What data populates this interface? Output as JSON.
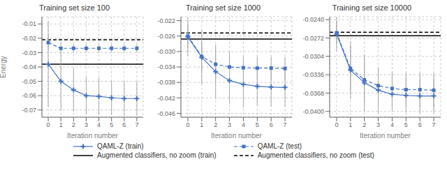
{
  "chart_data": [
    {
      "type": "line",
      "title": "Training set size 100",
      "xlabel": "Iteration number",
      "ylabel": "Energy",
      "x": [
        0,
        1,
        2,
        3,
        4,
        5,
        6,
        7
      ],
      "xlim": [
        -0.5,
        7.5
      ],
      "xticks": [
        0,
        1,
        2,
        3,
        4,
        5,
        6,
        7
      ],
      "ylim": [
        -0.075,
        -0.005
      ],
      "yticks": [
        -0.07,
        -0.06,
        -0.05,
        -0.04,
        -0.03,
        -0.02,
        -0.01
      ],
      "grid": true,
      "legend": "bottom",
      "series": [
        {
          "name": "QAML-Z (train)",
          "type": "line",
          "color": "#4472c4",
          "marker": "plus",
          "line_style": "solid",
          "values": [
            -0.038,
            -0.05,
            -0.056,
            -0.06,
            -0.0605,
            -0.0615,
            -0.062,
            -0.062
          ],
          "error": [
            0.03,
            0.02,
            0.015,
            0.013,
            0.013,
            0.012,
            0.012,
            0.012
          ]
        },
        {
          "name": "QAML-Z (test)",
          "type": "line",
          "color": "#4472c4",
          "marker": "square",
          "line_style": "dashed",
          "values": [
            -0.023,
            -0.027,
            -0.027,
            -0.027,
            -0.027,
            -0.027,
            -0.027,
            -0.027
          ],
          "error": [
            0.005,
            0.004,
            0.003,
            0.003,
            0.003,
            0.003,
            0.003,
            0.003
          ]
        },
        {
          "name": "Augmented classifiers, no zoom (train)",
          "type": "hline",
          "color": "#000000",
          "line_style": "solid",
          "y": -0.038
        },
        {
          "name": "Augmented classifiers, no zoom (test)",
          "type": "hline",
          "color": "#000000",
          "line_style": "dashed",
          "y": -0.021
        }
      ]
    },
    {
      "type": "line",
      "title": "Training set size 1000",
      "xlabel": "Iteration number",
      "x": [
        0,
        1,
        2,
        3,
        4,
        5,
        6,
        7
      ],
      "xlim": [
        -0.5,
        7.5
      ],
      "xticks": [
        0,
        1,
        2,
        3,
        4,
        5,
        6,
        7
      ],
      "ylim": [
        -0.047,
        -0.021
      ],
      "yticks": [
        -0.046,
        -0.042,
        -0.038,
        -0.034,
        {
          "value": -0.03,
          "label": "-0.030"
        },
        -0.026,
        -0.022
      ],
      "grid": true,
      "legend": "bottom",
      "series": [
        {
          "name": "QAML-Z (train)",
          "type": "line",
          "color": "#4472c4",
          "marker": "plus",
          "line_style": "solid",
          "values": [
            -0.0262,
            -0.0315,
            -0.0352,
            -0.0375,
            -0.0385,
            -0.039,
            -0.0392,
            -0.0393
          ],
          "error": [
            0.005,
            0.007,
            0.007,
            0.006,
            0.006,
            0.005,
            0.005,
            0.005
          ]
        },
        {
          "name": "QAML-Z (test)",
          "type": "line",
          "color": "#4472c4",
          "marker": "square",
          "line_style": "dashed",
          "values": [
            -0.026,
            -0.0313,
            -0.0333,
            -0.034,
            -0.0342,
            -0.0343,
            -0.0343,
            -0.0344
          ],
          "error": [
            0.003,
            0.004,
            0.004,
            0.004,
            0.003,
            0.003,
            0.003,
            0.003
          ]
        },
        {
          "name": "Augmented classifiers, no zoom (train)",
          "type": "hline",
          "color": "#000000",
          "line_style": "solid",
          "y": -0.0268
        },
        {
          "name": "Augmented classifiers, no zoom (test)",
          "type": "hline",
          "color": "#000000",
          "line_style": "dashed",
          "y": -0.0252
        }
      ]
    },
    {
      "type": "line",
      "title": "Training set size 10000",
      "xlabel": "Iteration number",
      "x": [
        0,
        1,
        2,
        3,
        4,
        5,
        6,
        7
      ],
      "xlim": [
        -0.5,
        7.5
      ],
      "xticks": [
        0,
        1,
        2,
        3,
        4,
        5,
        6,
        7
      ],
      "ylim": [
        -0.041,
        -0.0235
      ],
      "yticks": [
        {
          "value": -0.04,
          "label": "-0.0400"
        },
        -0.0368,
        -0.0336,
        -0.0304,
        -0.0272,
        {
          "value": -0.024,
          "label": "-0.0240"
        }
      ],
      "grid": true,
      "legend": "bottom",
      "series": [
        {
          "name": "QAML-Z (train)",
          "type": "line",
          "color": "#4472c4",
          "marker": "plus",
          "line_style": "solid",
          "values": [
            -0.0265,
            -0.0328,
            -0.035,
            -0.0363,
            -0.037,
            -0.0372,
            -0.0373,
            -0.0373
          ],
          "error": [
            0.003,
            0.005,
            0.005,
            0.004,
            0.003,
            0.003,
            0.003,
            0.003
          ]
        },
        {
          "name": "QAML-Z (test)",
          "type": "line",
          "color": "#4472c4",
          "marker": "square",
          "line_style": "dashed",
          "values": [
            -0.0263,
            -0.0325,
            -0.0345,
            -0.0355,
            -0.036,
            -0.0362,
            -0.0362,
            -0.0363
          ],
          "error": [
            0.002,
            0.004,
            0.004,
            0.003,
            0.003,
            0.003,
            0.003,
            0.003
          ]
        },
        {
          "name": "Augmented classifiers, no zoom (train)",
          "type": "hline",
          "color": "#000000",
          "line_style": "solid",
          "y": -0.0268
        },
        {
          "name": "Augmented classifiers, no zoom (test)",
          "type": "hline",
          "color": "#000000",
          "line_style": "dashed",
          "y": -0.0262
        }
      ]
    }
  ]
}
